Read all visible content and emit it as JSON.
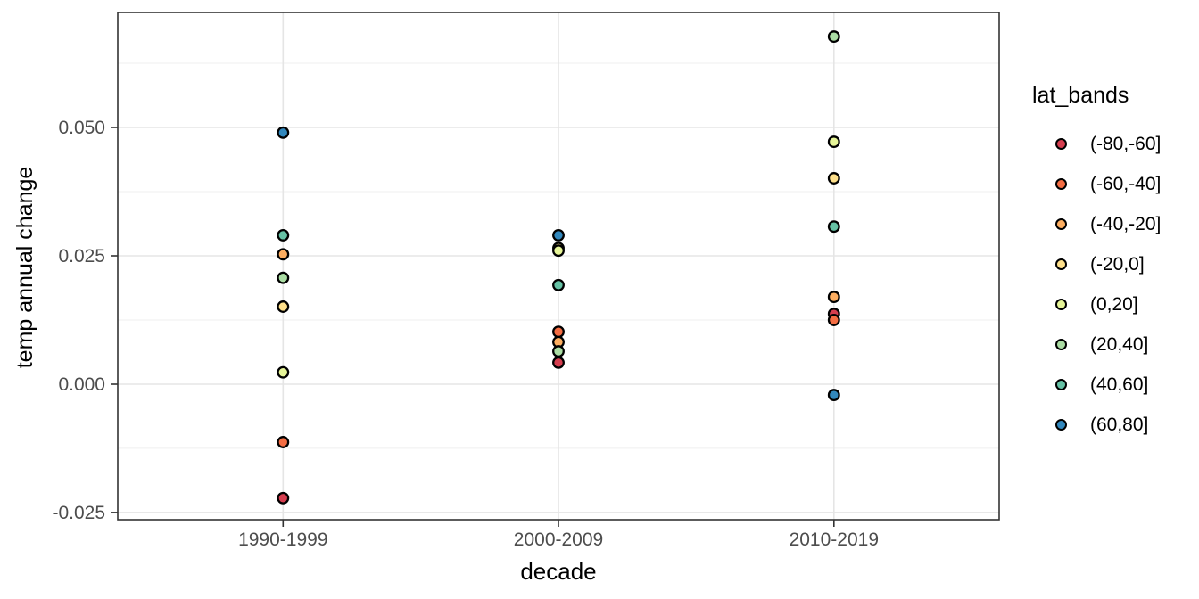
{
  "chart_data": {
    "type": "scatter",
    "title": "",
    "xlabel": "decade",
    "ylabel": "temp annual change",
    "legend_title": "lat_bands",
    "legend_position": "right",
    "grid": true,
    "categories": [
      "1990-1999",
      "2000-2009",
      "2010-2019"
    ],
    "ylim": [
      -0.0264,
      0.0724
    ],
    "y_ticks": [
      {
        "value": -0.025,
        "label": "-0.025"
      },
      {
        "value": 0.0,
        "label": "0.000"
      },
      {
        "value": 0.025,
        "label": "0.025"
      },
      {
        "value": 0.05,
        "label": "0.050"
      }
    ],
    "y_minor_gridlines": [
      -0.0125,
      0.0125,
      0.0375,
      0.0625
    ],
    "series": [
      {
        "name": "(-80,-60]",
        "color": "#d53e4f",
        "values": [
          -0.0222,
          0.0042,
          0.0137
        ]
      },
      {
        "name": "(-60,-40]",
        "color": "#f46d43",
        "values": [
          -0.0113,
          0.0102,
          0.0125
        ]
      },
      {
        "name": "(-40,-20]",
        "color": "#fdae61",
        "values": [
          0.0253,
          0.0082,
          0.017
        ]
      },
      {
        "name": "(-20,0]",
        "color": "#fee08b",
        "values": [
          0.0151,
          0.0265,
          0.0401
        ]
      },
      {
        "name": "(0,20]",
        "color": "#e6f598",
        "values": [
          0.0023,
          0.026,
          0.0472
        ]
      },
      {
        "name": "(20,40]",
        "color": "#abdda4",
        "values": [
          0.0207,
          0.0064,
          0.0677
        ]
      },
      {
        "name": "(40,60]",
        "color": "#66c2a5",
        "values": [
          0.029,
          0.0193,
          0.0307
        ]
      },
      {
        "name": "(60,80]",
        "color": "#3288bd",
        "values": [
          0.049,
          0.029,
          -0.0021
        ]
      }
    ],
    "style_colors": {
      "panel_border": "#333333",
      "major_gridline": "#e5e5e5",
      "minor_gridline": "#efefef",
      "tick_mark": "#333333",
      "tick_label": "#4d4d4d",
      "point_outline": "#000000"
    }
  }
}
